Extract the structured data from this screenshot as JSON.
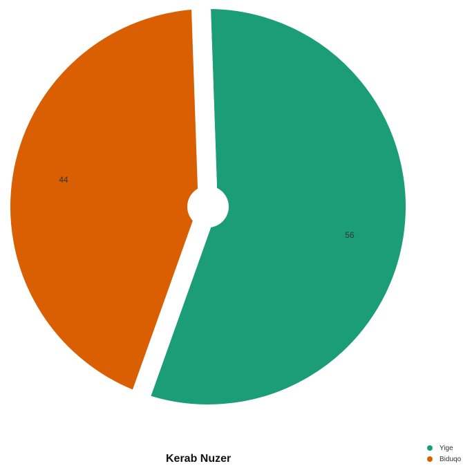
{
  "chart_data": {
    "type": "pie",
    "title": "Kerab Nuzer",
    "legend_position": "bottom-right",
    "slices": [
      {
        "name": "Yige",
        "value": 56,
        "label": "56",
        "color": "#1b9e77"
      },
      {
        "name": "Biduqo",
        "value": 44,
        "label": "44",
        "color": "#d95f02"
      }
    ]
  }
}
